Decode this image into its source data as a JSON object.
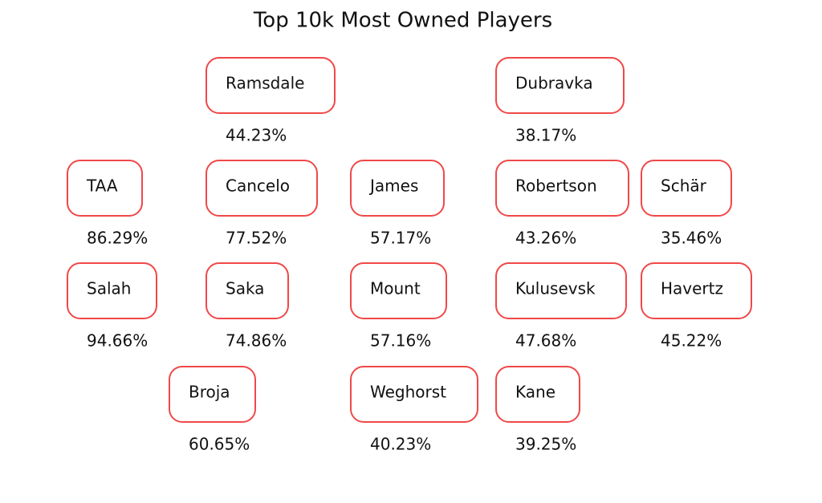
{
  "title": "Top 10k Most Owned Players",
  "players": [
    {
      "name": "Ramsdale",
      "ownership": "44.23%"
    },
    {
      "name": "Dubravka",
      "ownership": "38.17%"
    },
    {
      "name": "TAA",
      "ownership": "86.29%"
    },
    {
      "name": "Cancelo",
      "ownership": "77.52%"
    },
    {
      "name": "James",
      "ownership": "57.17%"
    },
    {
      "name": "Robertson",
      "ownership": "43.26%"
    },
    {
      "name": "Schär",
      "ownership": "35.46%"
    },
    {
      "name": "Salah",
      "ownership": "94.66%"
    },
    {
      "name": "Saka",
      "ownership": "74.86%"
    },
    {
      "name": "Mount",
      "ownership": "57.16%"
    },
    {
      "name": "Kulusevsk",
      "ownership": "47.68%"
    },
    {
      "name": "Havertz",
      "ownership": "45.22%"
    },
    {
      "name": "Broja",
      "ownership": "60.65%"
    },
    {
      "name": "Weghorst",
      "ownership": "40.23%"
    },
    {
      "name": "Kane",
      "ownership": "39.25%"
    }
  ]
}
